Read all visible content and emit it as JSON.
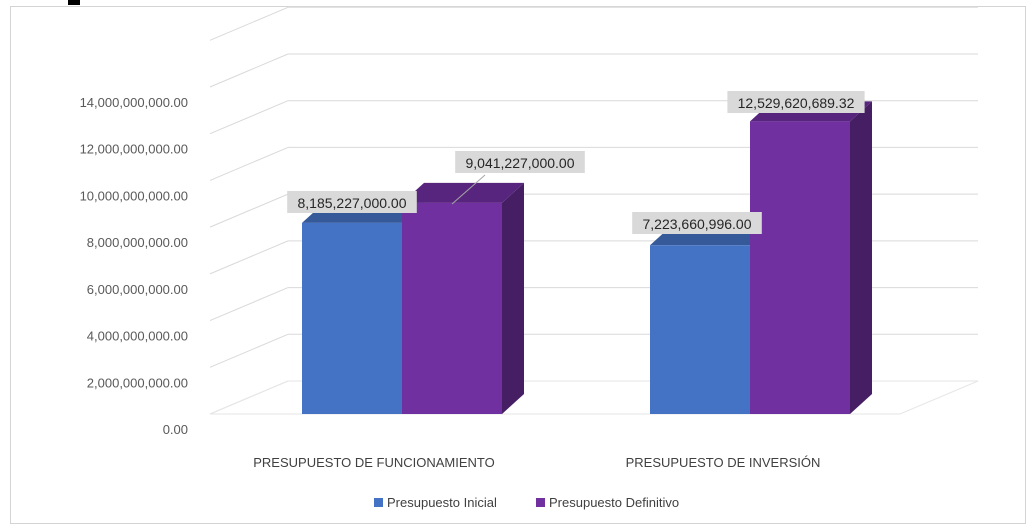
{
  "chart_data": {
    "type": "bar",
    "categories": [
      "PRESUPUESTO DE  FUNCIONAMIENTO",
      "PRESUPUESTO DE INVERSIÓN"
    ],
    "series": [
      {
        "name": "Presupuesto Inicial",
        "color": "#4472C4",
        "values": [
          8185227000.0,
          7223660996.0
        ],
        "labels": [
          "8,185,227,000.00",
          "7,223,660,996.00"
        ]
      },
      {
        "name": "Presupuesto Definitivo",
        "color": "#7030A0",
        "values": [
          9041227000.0,
          12529620689.32
        ],
        "labels": [
          "9,041,227,000.00",
          "12,529,620,689.32"
        ]
      }
    ],
    "y_ticks": [
      "0.00",
      "2,000,000,000.00",
      "4,000,000,000.00",
      "6,000,000,000.00",
      "8,000,000,000.00",
      "10,000,000,000.00",
      "12,000,000,000.00",
      "14,000,000,000.00"
    ],
    "ylim": [
      0,
      16000000000
    ],
    "grid": true,
    "legend_position": "bottom",
    "style": "3d-clustered-column"
  }
}
